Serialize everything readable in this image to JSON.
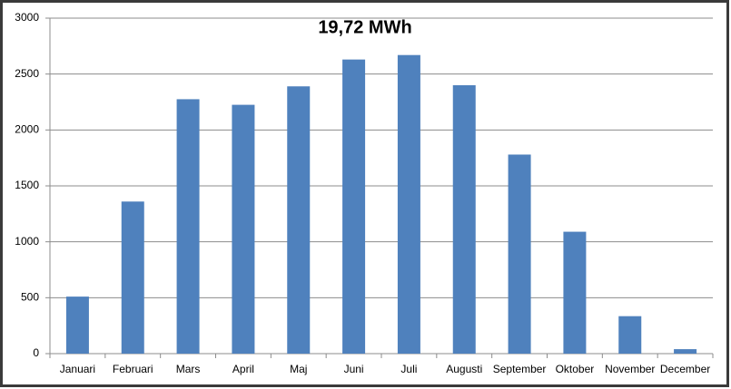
{
  "chart_data": {
    "type": "bar",
    "title": "19,72 MWh",
    "categories": [
      "Januari",
      "Februari",
      "Mars",
      "April",
      "Maj",
      "Juni",
      "Juli",
      "Augusti",
      "September",
      "Oktober",
      "November",
      "December"
    ],
    "values": [
      510,
      1360,
      2275,
      2225,
      2390,
      2630,
      2670,
      2400,
      1780,
      1090,
      335,
      40
    ],
    "color": "#4f81bd",
    "ylim": [
      0,
      3000
    ],
    "yticks": [
      0,
      500,
      1000,
      1500,
      2000,
      2500,
      3000
    ],
    "grid": true
  }
}
